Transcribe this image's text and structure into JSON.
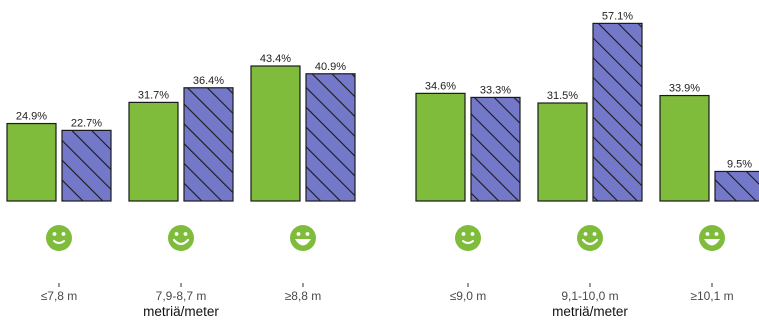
{
  "colors": {
    "solid": "#80BC3C",
    "hatched": "#7478C8",
    "stroke": "#1a1a1a",
    "face": "#80BC3C"
  },
  "chart_data": [
    {
      "type": "bar",
      "xlabel": "metriä/meter",
      "ylim": [
        0,
        60
      ],
      "categories": [
        "≤7,8 m",
        "7,9-8,7 m",
        "≥8,8 m"
      ],
      "faces": [
        "smile-small-icon",
        "smile-medium-icon",
        "smile-big-icon"
      ],
      "series": [
        {
          "style": "solid",
          "values": [
            24.9,
            31.7,
            43.4
          ],
          "labels": [
            "24.9%",
            "31.7%",
            "43.4%"
          ]
        },
        {
          "style": "hatched",
          "values": [
            22.7,
            36.4,
            40.9
          ],
          "labels": [
            "22.7%",
            "36.4%",
            "40.9%"
          ]
        }
      ]
    },
    {
      "type": "bar",
      "xlabel": "metriä/meter",
      "ylim": [
        0,
        60
      ],
      "categories": [
        "≤9,0 m",
        "9,1-10,0 m",
        "≥10,1 m"
      ],
      "faces": [
        "smile-small-icon",
        "smile-medium-icon",
        "smile-big-icon"
      ],
      "series": [
        {
          "style": "solid",
          "values": [
            34.6,
            31.5,
            33.9
          ],
          "labels": [
            "34.6%",
            "31.5%",
            "33.9%"
          ]
        },
        {
          "style": "hatched",
          "values": [
            33.3,
            57.1,
            9.5
          ],
          "labels": [
            "33.3%",
            "57.1%",
            "9.5%"
          ]
        }
      ]
    }
  ]
}
